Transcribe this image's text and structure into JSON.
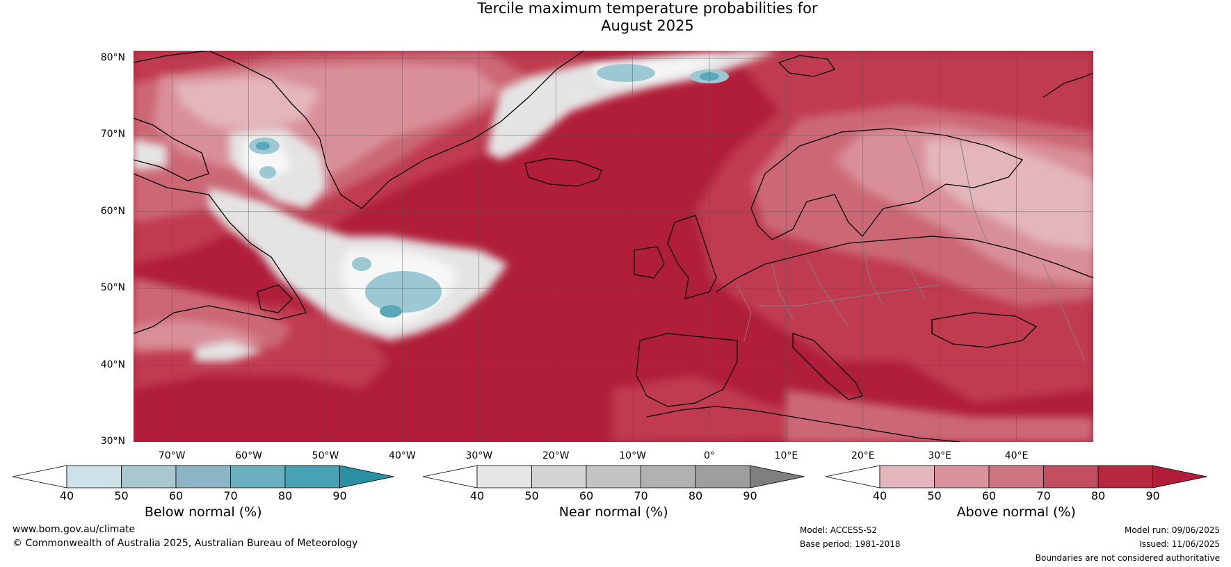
{
  "title": {
    "line1": "Tercile maximum temperature probabilities for",
    "line2": "August 2025"
  },
  "map": {
    "lat_labels": [
      "80°N",
      "70°N",
      "60°N",
      "50°N",
      "40°N",
      "30°N"
    ],
    "lon_labels": [
      "70°W",
      "60°W",
      "50°W",
      "40°W",
      "30°W",
      "20°W",
      "10°W",
      "0°",
      "10°E",
      "20°E",
      "30°E",
      "40°E"
    ],
    "extent": {
      "lon_min": -75,
      "lon_max": 50,
      "lat_min": 30,
      "lat_max": 81
    },
    "colors": {
      "above_90": "#b01e3a",
      "above_80": "#c03a50",
      "above_70": "#cc6876",
      "above_60": "#d98f99",
      "above_50": "#e3b5bc",
      "near": "#e4e4e4",
      "near_white": "#f7f7f7",
      "below_50": "#c9e0e6",
      "below_60": "#90c3cf",
      "below_70": "#5aa7b9",
      "coast": "#000000",
      "border": "#808080",
      "grid": "#555555"
    }
  },
  "colorbars": [
    {
      "label": "Below normal (%)",
      "ticks": [
        "40",
        "50",
        "60",
        "70",
        "80",
        "90"
      ],
      "colors": [
        "#ffffff",
        "#cde2e8",
        "#a9c7cf",
        "#8bb4c4",
        "#6aafbd",
        "#47a3b3",
        "#2b8fa3"
      ]
    },
    {
      "label": "Near normal (%)",
      "ticks": [
        "40",
        "50",
        "60",
        "70",
        "80",
        "90"
      ],
      "colors": [
        "#ffffff",
        "#e6e6e6",
        "#d4d4d4",
        "#c3c3c3",
        "#b1b1b1",
        "#9e9e9e",
        "#7f7f7f"
      ]
    },
    {
      "label": "Above normal (%)",
      "ticks": [
        "40",
        "50",
        "60",
        "70",
        "80",
        "90"
      ],
      "colors": [
        "#ffffff",
        "#e4b6bd",
        "#d9939d",
        "#cc7581",
        "#c24e5f",
        "#b8293f",
        "#b01e3a"
      ]
    }
  ],
  "footer": {
    "website": "www.bom.gov.au/climate",
    "copyright": "© Commonwealth of Australia 2025, Australian Bureau of Meteorology",
    "model": "Model: ACCESS-S2",
    "base_period": "Base period: 1981-2018",
    "model_run": "Model run: 09/06/2025",
    "issued": "Issued: 11/06/2025",
    "disclaimer": "Boundaries are not considered authoritative"
  }
}
